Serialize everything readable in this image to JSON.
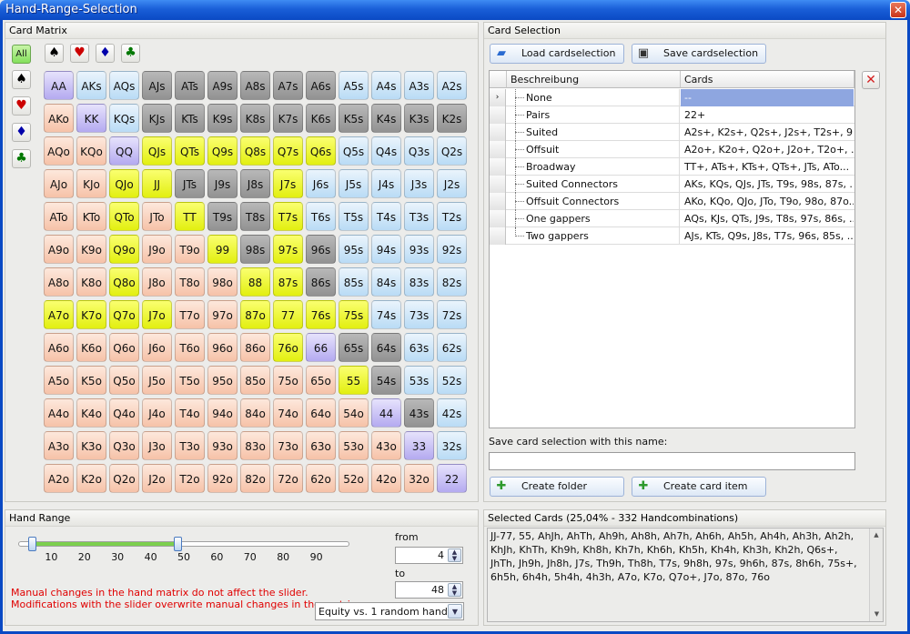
{
  "window": {
    "title": "Hand-Range-Selection"
  },
  "matrix": {
    "title": "Card Matrix",
    "suit_buttons": [
      {
        "icon": "spade-icon",
        "glyph": "♠",
        "color": "#000000"
      },
      {
        "icon": "heart-icon",
        "glyph": "♥",
        "color": "#cc0000"
      },
      {
        "icon": "diamond-icon",
        "glyph": "♦",
        "color": "#0000aa"
      },
      {
        "icon": "club-icon",
        "glyph": "♣",
        "color": "#007700"
      }
    ],
    "all_label": "All",
    "rows": [
      [
        "AA",
        "AKs",
        "AQs",
        "AJs",
        "ATs",
        "A9s",
        "A8s",
        "A7s",
        "A6s",
        "A5s",
        "A4s",
        "A3s",
        "A2s"
      ],
      [
        "AKo",
        "KK",
        "KQs",
        "KJs",
        "KTs",
        "K9s",
        "K8s",
        "K7s",
        "K6s",
        "K5s",
        "K4s",
        "K3s",
        "K2s"
      ],
      [
        "AQo",
        "KQo",
        "QQ",
        "QJs",
        "QTs",
        "Q9s",
        "Q8s",
        "Q7s",
        "Q6s",
        "Q5s",
        "Q4s",
        "Q3s",
        "Q2s"
      ],
      [
        "AJo",
        "KJo",
        "QJo",
        "JJ",
        "JTs",
        "J9s",
        "J8s",
        "J7s",
        "J6s",
        "J5s",
        "J4s",
        "J3s",
        "J2s"
      ],
      [
        "ATo",
        "KTo",
        "QTo",
        "JTo",
        "TT",
        "T9s",
        "T8s",
        "T7s",
        "T6s",
        "T5s",
        "T4s",
        "T3s",
        "T2s"
      ],
      [
        "A9o",
        "K9o",
        "Q9o",
        "J9o",
        "T9o",
        "99",
        "98s",
        "97s",
        "96s",
        "95s",
        "94s",
        "93s",
        "92s"
      ],
      [
        "A8o",
        "K8o",
        "Q8o",
        "J8o",
        "T8o",
        "98o",
        "88",
        "87s",
        "86s",
        "85s",
        "84s",
        "83s",
        "82s"
      ],
      [
        "A7o",
        "K7o",
        "Q7o",
        "J7o",
        "T7o",
        "97o",
        "87o",
        "77",
        "76s",
        "75s",
        "74s",
        "73s",
        "72s"
      ],
      [
        "A6o",
        "K6o",
        "Q6o",
        "J6o",
        "T6o",
        "96o",
        "86o",
        "76o",
        "66",
        "65s",
        "64s",
        "63s",
        "62s"
      ],
      [
        "A5o",
        "K5o",
        "Q5o",
        "J5o",
        "T5o",
        "95o",
        "85o",
        "75o",
        "65o",
        "55",
        "54s",
        "53s",
        "52s"
      ],
      [
        "A4o",
        "K4o",
        "Q4o",
        "J4o",
        "T4o",
        "94o",
        "84o",
        "74o",
        "64o",
        "54o",
        "44",
        "43s",
        "42s"
      ],
      [
        "A3o",
        "K3o",
        "Q3o",
        "J3o",
        "T3o",
        "93o",
        "83o",
        "73o",
        "63o",
        "53o",
        "43o",
        "33",
        "32s"
      ],
      [
        "A2o",
        "K2o",
        "Q2o",
        "J2o",
        "T2o",
        "92o",
        "82o",
        "72o",
        "62o",
        "52o",
        "42o",
        "32o",
        "22"
      ]
    ],
    "states": [
      [
        "p",
        "b",
        "b",
        "g",
        "g",
        "g",
        "g",
        "g",
        "g",
        "b",
        "b",
        "b",
        "b"
      ],
      [
        "e",
        "p",
        "b",
        "g",
        "g",
        "g",
        "g",
        "g",
        "g",
        "g",
        "g",
        "g",
        "g"
      ],
      [
        "e",
        "e",
        "p",
        "y",
        "y",
        "y",
        "y",
        "y",
        "y",
        "b",
        "b",
        "b",
        "b"
      ],
      [
        "e",
        "e",
        "y",
        "y",
        "g",
        "g",
        "g",
        "y",
        "b",
        "b",
        "b",
        "b",
        "b"
      ],
      [
        "e",
        "e",
        "y",
        "e",
        "y",
        "g",
        "g",
        "y",
        "b",
        "b",
        "b",
        "b",
        "b"
      ],
      [
        "e",
        "e",
        "y",
        "e",
        "e",
        "y",
        "g",
        "y",
        "g",
        "b",
        "b",
        "b",
        "b"
      ],
      [
        "e",
        "e",
        "y",
        "e",
        "e",
        "e",
        "y",
        "y",
        "g",
        "b",
        "b",
        "b",
        "b"
      ],
      [
        "y",
        "y",
        "y",
        "y",
        "e",
        "e",
        "y",
        "y",
        "y",
        "y",
        "b",
        "b",
        "b"
      ],
      [
        "e",
        "e",
        "e",
        "e",
        "e",
        "e",
        "e",
        "y",
        "p",
        "g",
        "g",
        "b",
        "b"
      ],
      [
        "e",
        "e",
        "e",
        "e",
        "e",
        "e",
        "e",
        "e",
        "e",
        "y",
        "g",
        "b",
        "b"
      ],
      [
        "e",
        "e",
        "e",
        "e",
        "e",
        "e",
        "e",
        "e",
        "e",
        "e",
        "p",
        "g",
        "b"
      ],
      [
        "e",
        "e",
        "e",
        "e",
        "e",
        "e",
        "e",
        "e",
        "e",
        "e",
        "e",
        "p",
        "b"
      ],
      [
        "e",
        "e",
        "e",
        "e",
        "e",
        "e",
        "e",
        "e",
        "e",
        "e",
        "e",
        "e",
        "p"
      ]
    ],
    "colors": {
      "b": "c-blue",
      "e": "c-peach",
      "p": "c-purple",
      "g": "c-gray",
      "y": "c-yellow"
    }
  },
  "selection": {
    "title": "Card Selection",
    "load_label": "Load cardselection",
    "save_label": "Save cardselection",
    "col_desc": "Beschreibung",
    "col_cards": "Cards",
    "rows": [
      {
        "name": "None",
        "cards": "--"
      },
      {
        "name": "Pairs",
        "cards": "22+"
      },
      {
        "name": "Suited",
        "cards": "A2s+, K2s+, Q2s+, J2s+, T2s+, 9..."
      },
      {
        "name": "Offsuit",
        "cards": "A2o+, K2o+, Q2o+, J2o+, T2o+, ..."
      },
      {
        "name": "Broadway",
        "cards": "TT+, ATs+, KTs+, QTs+, JTs, ATo..."
      },
      {
        "name": "Suited Connectors",
        "cards": "AKs, KQs, QJs, JTs, T9s, 98s, 87s, ..."
      },
      {
        "name": "Offsuit Connectors",
        "cards": "AKo, KQo, QJo, JTo, T9o, 98o, 87o..."
      },
      {
        "name": "One gappers",
        "cards": "AQs, KJs, QTs, J9s, T8s, 97s, 86s, ..."
      },
      {
        "name": "Two gappers",
        "cards": "AJs, KTs, Q9s, J8s, T7s, 96s, 85s, ..."
      }
    ],
    "save_name_label": "Save card selection with this name:",
    "save_name_value": "",
    "create_folder_label": "Create folder",
    "create_item_label": "Create card item"
  },
  "hand_range": {
    "title": "Hand Range",
    "ticks": [
      "10",
      "20",
      "30",
      "40",
      "50",
      "60",
      "70",
      "80",
      "90"
    ],
    "from_label": "from",
    "from_value": "4",
    "to_label": "to",
    "to_value": "48",
    "slider_low": 4,
    "slider_high": 48,
    "note_line1": "Manual changes in the hand matrix do not affect the slider.",
    "note_line2": "Modifications with the slider overwrite manual changes in the matrix.",
    "equity_option": "Equity vs. 1 random hand"
  },
  "selected": {
    "title": "Selected Cards (25,04% - 332 Handcombinations)",
    "text": "JJ-77, 55, AhJh, AhTh, Ah9h, Ah8h, Ah7h, Ah6h, Ah5h, Ah4h, Ah3h, Ah2h, KhJh, KhTh, Kh9h, Kh8h, Kh7h, Kh6h, Kh5h, Kh4h, Kh3h, Kh2h, Q6s+, JhTh, Jh9h, Jh8h, J7s, Th9h, Th8h, T7s, 9h8h, 97s, 9h6h, 87s, 8h6h, 75s+, 6h5h, 6h4h, 5h4h, 4h3h, A7o, K7o, Q7o+, J7o, 87o, 76o"
  }
}
